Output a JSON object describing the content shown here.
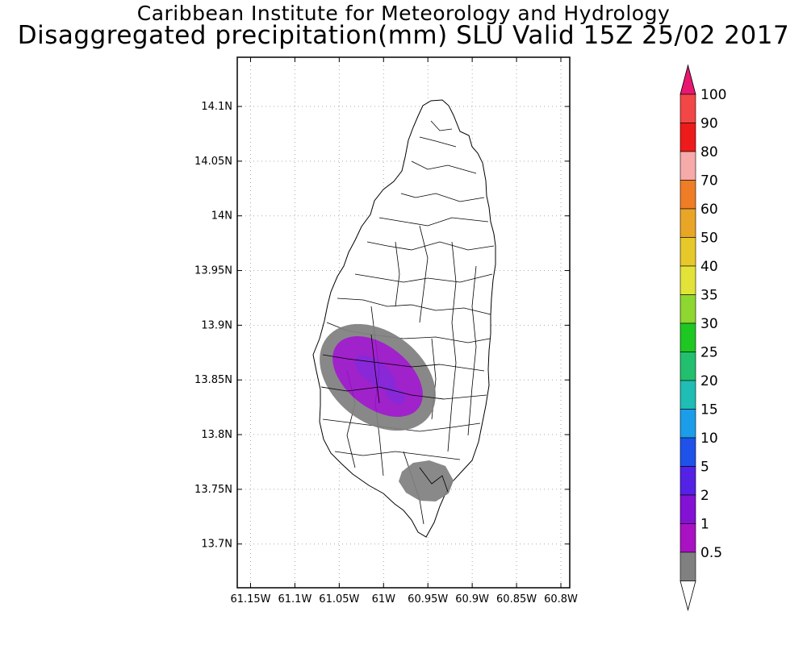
{
  "header": {
    "title": "Caribbean Institute for Meteorology and Hydrology",
    "subtitle": "Disaggregated precipitation(mm) SLU Valid 15Z 25/02 2017"
  },
  "axes": {
    "lat_ticks": [
      "14.1N",
      "14.05N",
      "14N",
      "13.95N",
      "13.9N",
      "13.85N",
      "13.8N",
      "13.75N",
      "13.7N"
    ],
    "lon_ticks": [
      "61.15W",
      "61.1W",
      "61.05W",
      "61W",
      "60.95W",
      "60.9W",
      "60.85W",
      "60.8W"
    ],
    "lat_range": [
      13.66,
      14.145
    ],
    "lon_range": [
      -61.165,
      -60.79
    ]
  },
  "colorbar": {
    "labels": [
      "100",
      "90",
      "80",
      "70",
      "60",
      "50",
      "40",
      "35",
      "30",
      "25",
      "20",
      "15",
      "10",
      "5",
      "2",
      "1",
      "0.5"
    ],
    "colors": [
      "#e8176f",
      "#f24747",
      "#ee1b1b",
      "#f6aaaa",
      "#ef7d25",
      "#e9a626",
      "#e6c82a",
      "#e3e239",
      "#8ed630",
      "#1fc722",
      "#22c06e",
      "#1fbdb4",
      "#1c9dea",
      "#1f52e8",
      "#5422e5",
      "#8312d5",
      "#a912c3",
      "#808080",
      "#ffffff"
    ]
  },
  "precip_areas": [
    {
      "name": "central-west",
      "outer_color": "#808080",
      "inner_color": "#9912c8",
      "core_color": "#6a1ee0"
    },
    {
      "name": "south-east",
      "color": "#808080"
    }
  ],
  "colors": {
    "grid": "#aaaaaa",
    "land": "#ffffff",
    "outline": "#000000"
  }
}
